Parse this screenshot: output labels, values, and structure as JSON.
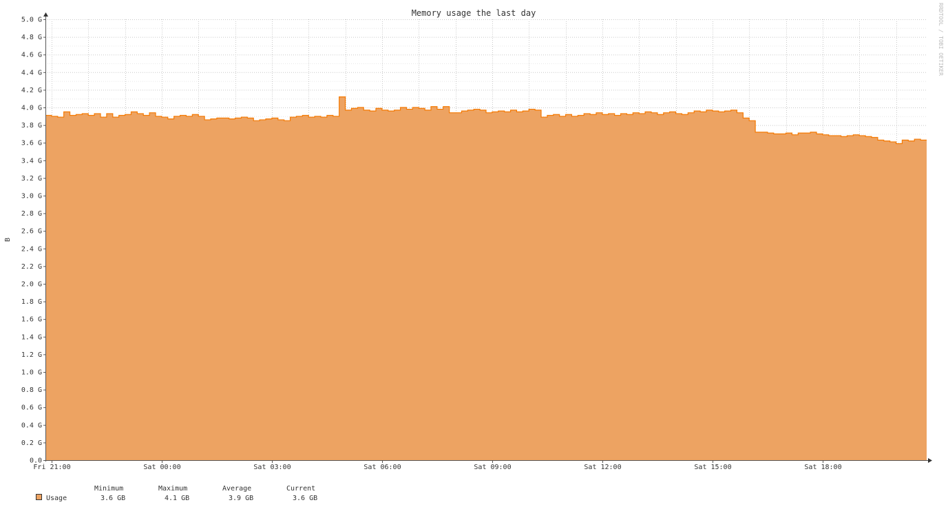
{
  "chart_data": {
    "type": "area",
    "title": "Memory usage the last day",
    "ylabel": "B",
    "ylim": [
      0,
      5.0
    ],
    "y_unit": "G",
    "yticks": [
      "0.0",
      "0.2 G",
      "0.4 G",
      "0.6 G",
      "0.8 G",
      "1.0 G",
      "1.2 G",
      "1.4 G",
      "1.6 G",
      "1.8 G",
      "2.0 G",
      "2.2 G",
      "2.4 G",
      "2.6 G",
      "2.8 G",
      "3.0 G",
      "3.2 G",
      "3.4 G",
      "3.6 G",
      "3.8 G",
      "4.0 G",
      "4.2 G",
      "4.4 G",
      "4.6 G",
      "4.8 G",
      "5.0 G"
    ],
    "xticks": [
      "Fri 21:00",
      "Sat 00:00",
      "Sat 03:00",
      "Sat 06:00",
      "Sat 09:00",
      "Sat 12:00",
      "Sat 15:00",
      "Sat 18:00"
    ],
    "xrange": [
      "Fri 20:50",
      "Sat 20:50"
    ],
    "grid": true,
    "sample_interval_minutes": 10,
    "series": [
      {
        "name": "Usage",
        "color": "#EDA362",
        "line_color": "#F57900",
        "values": [
          3.91,
          3.9,
          3.89,
          3.95,
          3.91,
          3.92,
          3.93,
          3.91,
          3.93,
          3.89,
          3.93,
          3.89,
          3.91,
          3.92,
          3.95,
          3.93,
          3.91,
          3.94,
          3.9,
          3.89,
          3.87,
          3.9,
          3.91,
          3.9,
          3.92,
          3.9,
          3.86,
          3.87,
          3.88,
          3.88,
          3.87,
          3.88,
          3.89,
          3.88,
          3.85,
          3.86,
          3.87,
          3.88,
          3.86,
          3.85,
          3.89,
          3.9,
          3.91,
          3.89,
          3.9,
          3.89,
          3.91,
          3.9,
          4.12,
          3.97,
          3.99,
          4.0,
          3.97,
          3.96,
          3.99,
          3.97,
          3.96,
          3.97,
          4.0,
          3.98,
          4.0,
          3.99,
          3.97,
          4.01,
          3.98,
          4.01,
          3.94,
          3.94,
          3.96,
          3.97,
          3.98,
          3.97,
          3.94,
          3.95,
          3.96,
          3.95,
          3.97,
          3.95,
          3.96,
          3.98,
          3.97,
          3.89,
          3.91,
          3.92,
          3.9,
          3.92,
          3.9,
          3.91,
          3.93,
          3.92,
          3.94,
          3.92,
          3.93,
          3.91,
          3.93,
          3.92,
          3.94,
          3.93,
          3.95,
          3.94,
          3.92,
          3.94,
          3.95,
          3.93,
          3.92,
          3.94,
          3.96,
          3.95,
          3.97,
          3.96,
          3.95,
          3.96,
          3.97,
          3.94,
          3.88,
          3.85,
          3.72,
          3.72,
          3.71,
          3.7,
          3.7,
          3.71,
          3.69,
          3.71,
          3.71,
          3.72,
          3.7,
          3.69,
          3.68,
          3.68,
          3.67,
          3.68,
          3.69,
          3.68,
          3.67,
          3.66,
          3.63,
          3.62,
          3.61,
          3.59,
          3.63,
          3.62,
          3.64,
          3.63
        ]
      }
    ],
    "legend": {
      "headers": [
        "Minimum",
        "Maximum",
        "Average",
        "Current"
      ],
      "rows": [
        {
          "label": "Usage",
          "values": [
            "3.6 GB",
            "4.1 GB",
            "3.9 GB",
            "3.6 GB"
          ]
        }
      ]
    },
    "watermark": "RRDTOOL / TOBI OETIKER"
  }
}
